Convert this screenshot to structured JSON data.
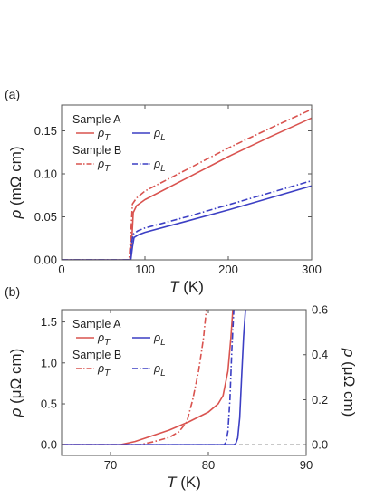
{
  "colors": {
    "red": "#d9534f",
    "blue": "#3c3fc4",
    "axis": "#555555",
    "zero_line": "#222222"
  },
  "chart_data": [
    {
      "type": "line",
      "panel_label": "(a)",
      "xlabel_var": "T",
      "xlabel_unit": " (K)",
      "ylabel_var": "ρ",
      "ylabel_unit": " (mΩ cm)",
      "xlim": [
        0,
        300
      ],
      "ylim": [
        0,
        0.18
      ],
      "xticks": [
        0,
        100,
        200,
        300
      ],
      "yticks": [
        0.0,
        0.05,
        0.1,
        0.15
      ],
      "ytick_labels": [
        "0.00",
        "0.05",
        "0.10",
        "0.15"
      ],
      "legend": {
        "groups": [
          {
            "title": "Sample A",
            "entries": [
              {
                "sym": "ρ",
                "sub": "T",
                "color": "red",
                "dash": false
              },
              {
                "sym": "ρ",
                "sub": "L",
                "color": "blue",
                "dash": false
              }
            ]
          },
          {
            "title": "Sample B",
            "entries": [
              {
                "sym": "ρ",
                "sub": "T",
                "color": "red",
                "dash": true
              },
              {
                "sym": "ρ",
                "sub": "L",
                "color": "blue",
                "dash": true
              }
            ]
          }
        ]
      },
      "series": [
        {
          "sample": "A",
          "component": "T",
          "color": "red",
          "dash": false,
          "x": [
            0,
            82,
            84,
            86,
            90,
            100,
            150,
            200,
            250,
            300
          ],
          "y": [
            0.0,
            0.0,
            0.02,
            0.055,
            0.063,
            0.07,
            0.095,
            0.12,
            0.143,
            0.165
          ]
        },
        {
          "sample": "B",
          "component": "T",
          "color": "red",
          "dash": true,
          "x": [
            0,
            81,
            83,
            85,
            90,
            100,
            150,
            200,
            250,
            300
          ],
          "y": [
            0.0,
            0.0,
            0.03,
            0.065,
            0.072,
            0.08,
            0.105,
            0.13,
            0.153,
            0.175
          ]
        },
        {
          "sample": "A",
          "component": "L",
          "color": "blue",
          "dash": false,
          "x": [
            0,
            83,
            85,
            87,
            92,
            100,
            150,
            200,
            250,
            300
          ],
          "y": [
            0.0,
            0.0,
            0.015,
            0.026,
            0.029,
            0.032,
            0.045,
            0.058,
            0.072,
            0.086
          ]
        },
        {
          "sample": "B",
          "component": "L",
          "color": "blue",
          "dash": true,
          "x": [
            0,
            82,
            84,
            86,
            92,
            100,
            150,
            200,
            250,
            300
          ],
          "y": [
            0.0,
            0.0,
            0.02,
            0.03,
            0.034,
            0.037,
            0.05,
            0.064,
            0.078,
            0.092
          ]
        }
      ]
    },
    {
      "type": "line",
      "panel_label": "(b)",
      "xlabel_var": "T",
      "xlabel_unit": " (K)",
      "ylabel_var": "ρ",
      "ylabel_unit": " (μΩ cm)",
      "y2label_var": "ρ",
      "y2label_unit": " (μΩ cm)",
      "xlim": [
        65,
        90
      ],
      "ylim": [
        -0.13,
        1.65
      ],
      "y2lim": [
        -0.0473,
        0.6
      ],
      "xticks": [
        70,
        80,
        90
      ],
      "yticks": [
        0.0,
        0.5,
        1.0,
        1.5
      ],
      "ytick_labels": [
        "0.0",
        "0.5",
        "1.0",
        "1.5"
      ],
      "y2ticks": [
        0.0,
        0.2,
        0.4,
        0.6
      ],
      "y2tick_labels": [
        "0.0",
        "0.2",
        "0.4",
        "0.6"
      ],
      "zero_line": true,
      "legend": {
        "groups": [
          {
            "title": "Sample A",
            "entries": [
              {
                "sym": "ρ",
                "sub": "T",
                "color": "red",
                "dash": false
              },
              {
                "sym": "ρ",
                "sub": "L",
                "color": "blue",
                "dash": false
              }
            ]
          },
          {
            "title": "Sample B",
            "entries": [
              {
                "sym": "ρ",
                "sub": "T",
                "color": "red",
                "dash": true
              },
              {
                "sym": "ρ",
                "sub": "L",
                "color": "blue",
                "dash": true
              }
            ]
          }
        ]
      },
      "series": [
        {
          "sample": "A",
          "component": "T",
          "color": "red",
          "dash": false,
          "axis": "left",
          "x": [
            65,
            71,
            72.5,
            74,
            76,
            78,
            80,
            81,
            81.5,
            82,
            82.3,
            82.5
          ],
          "y": [
            0.0,
            0.0,
            0.04,
            0.1,
            0.18,
            0.28,
            0.4,
            0.5,
            0.6,
            0.9,
            1.3,
            1.65
          ]
        },
        {
          "sample": "B",
          "component": "T",
          "color": "red",
          "dash": true,
          "axis": "left",
          "x": [
            65,
            73,
            74.5,
            76,
            77,
            77.8,
            78.4,
            79,
            79.5,
            79.8
          ],
          "y": [
            0.0,
            0.0,
            0.04,
            0.09,
            0.16,
            0.28,
            0.55,
            0.9,
            1.3,
            1.65
          ]
        },
        {
          "sample": "A",
          "component": "L",
          "color": "blue",
          "dash": false,
          "axis": "right",
          "x": [
            65,
            82.6,
            82.8,
            83.0,
            83.2,
            83.4,
            83.6,
            83.8
          ],
          "y": [
            0.0,
            0.0,
            0.005,
            0.03,
            0.12,
            0.3,
            0.48,
            0.6
          ]
        },
        {
          "sample": "B",
          "component": "L",
          "color": "blue",
          "dash": true,
          "axis": "right",
          "x": [
            65,
            81.6,
            81.8,
            82.0,
            82.2,
            82.4,
            82.6
          ],
          "y": [
            0.0,
            0.0,
            0.01,
            0.06,
            0.2,
            0.42,
            0.6
          ]
        }
      ]
    }
  ]
}
